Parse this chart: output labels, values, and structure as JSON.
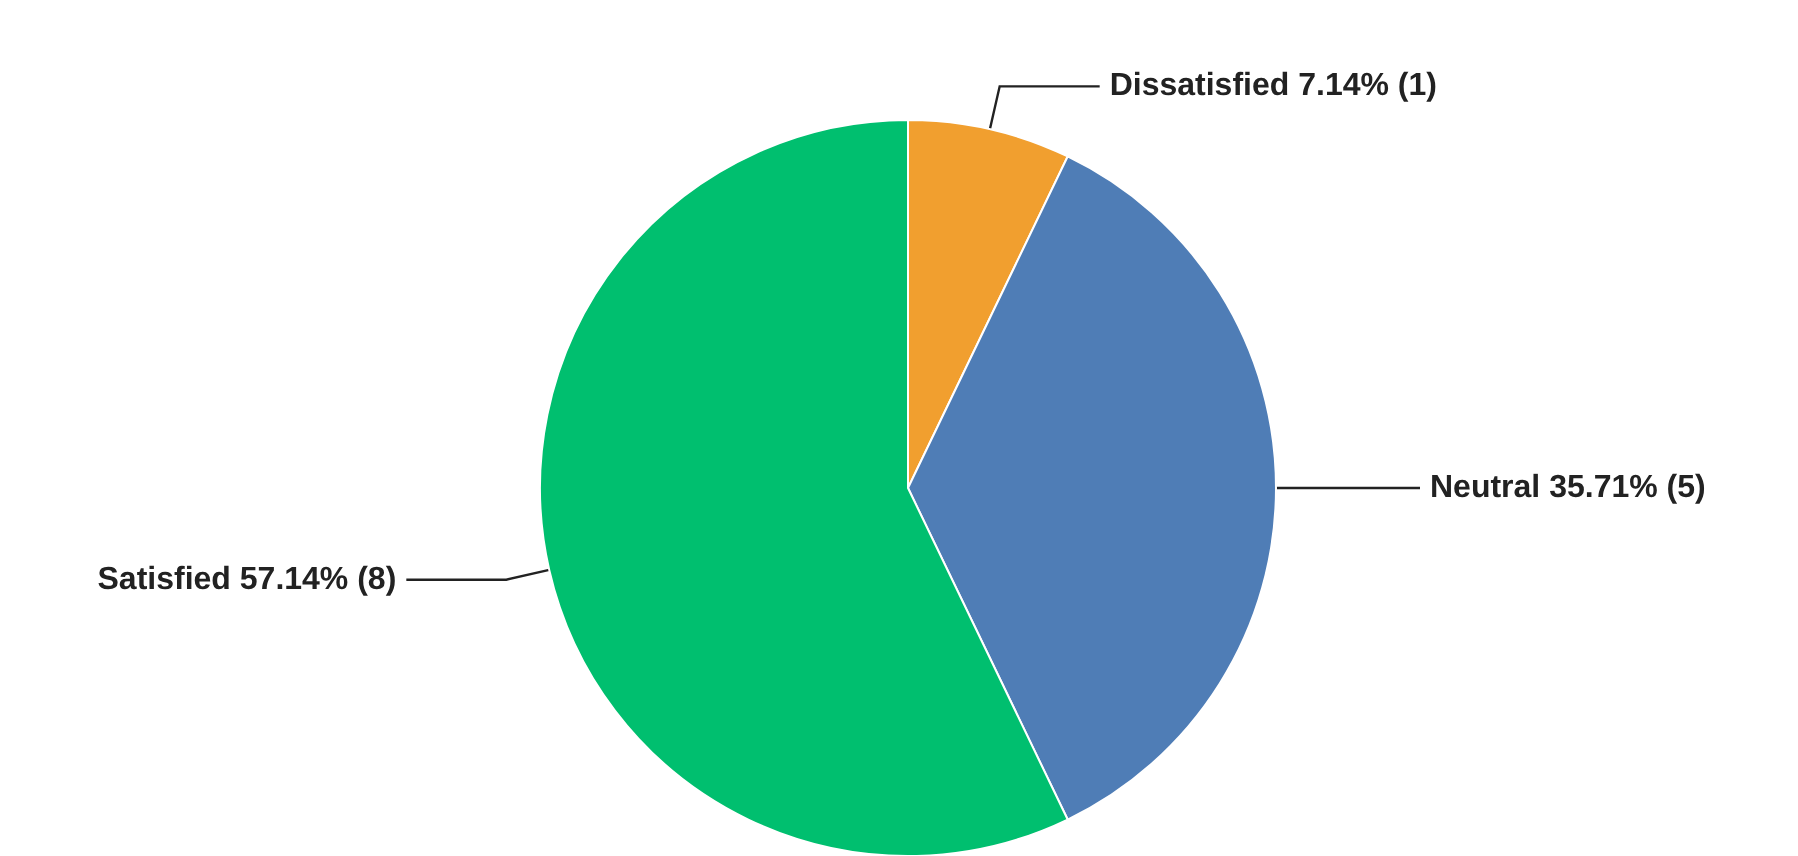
{
  "chart_data": {
    "type": "pie",
    "categories": [
      "Dissatisfied",
      "Neutral",
      "Satisfied"
    ],
    "values": [
      1,
      5,
      8
    ],
    "value_labels": [
      "7.14% (1)",
      "35.71% (5)",
      "57.14% (8)"
    ],
    "colors": [
      "#f19f2f",
      "#4f7db6",
      "#00bf6f"
    ],
    "legend": false
  }
}
